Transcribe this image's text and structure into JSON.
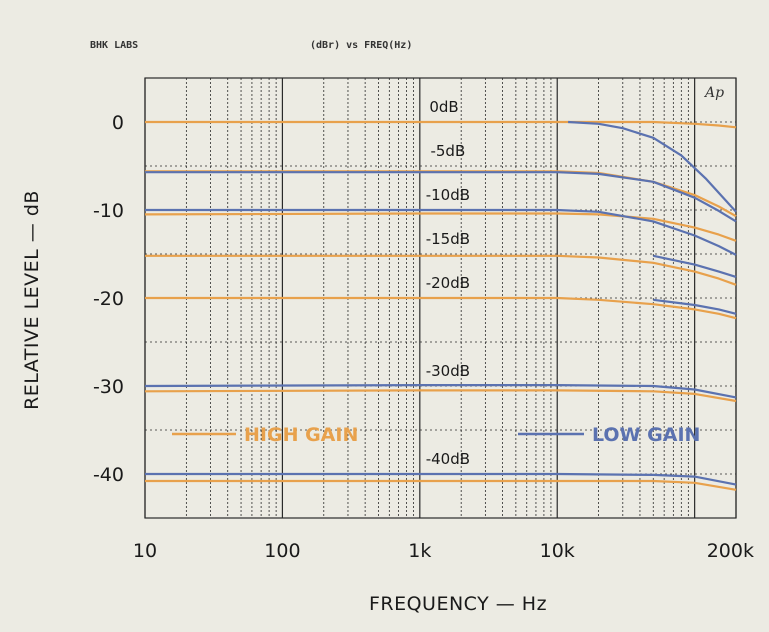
{
  "header": {
    "left": "BHK LABS",
    "center": "(dBr) vs FREQ(Hz)",
    "badge": "Ap"
  },
  "colors": {
    "high_gain": "#e8a14c",
    "low_gain": "#5b72b0",
    "grid": "#2a2a2a",
    "background": "#ecebe3"
  },
  "chart_data": {
    "type": "line",
    "title": "(dBr) vs FREQ(Hz)",
    "xlabel": "FREQUENCY — Hz",
    "ylabel": "RELATIVE LEVEL — dB",
    "xscale": "log",
    "xlim": [
      10,
      200000
    ],
    "ylim": [
      -45,
      5
    ],
    "grid": true,
    "legend_placement": "lower-middle",
    "x_ticks": [
      {
        "value": 10,
        "label": "10"
      },
      {
        "value": 100,
        "label": "100"
      },
      {
        "value": 1000,
        "label": "1k"
      },
      {
        "value": 10000,
        "label": "10k"
      },
      {
        "value": 200000,
        "label": "200k"
      }
    ],
    "y_ticks": [
      {
        "value": 0,
        "label": "0"
      },
      {
        "value": -10,
        "label": "-10"
      },
      {
        "value": -20,
        "label": "-20"
      },
      {
        "value": -30,
        "label": "-30"
      },
      {
        "value": -40,
        "label": "-40"
      }
    ],
    "annotations": [
      {
        "text": "0dB",
        "x": 1500,
        "y": 0
      },
      {
        "text": "-5dB",
        "x": 1600,
        "y": -5
      },
      {
        "text": "-10dB",
        "x": 1600,
        "y": -10
      },
      {
        "text": "-15dB",
        "x": 1600,
        "y": -15
      },
      {
        "text": "-20dB",
        "x": 1600,
        "y": -20
      },
      {
        "text": "-30dB",
        "x": 1600,
        "y": -30
      },
      {
        "text": "-40dB",
        "x": 1600,
        "y": -40
      }
    ],
    "legend": [
      {
        "label": "HIGH GAIN",
        "color": "#e8a14c"
      },
      {
        "label": "LOW GAIN",
        "color": "#5b72b0"
      }
    ],
    "series": [
      {
        "name": "HIGH GAIN",
        "color": "#e8a14c",
        "x": [
          10,
          1000,
          10000,
          20000,
          50000,
          100000,
          150000,
          200000
        ],
        "y": [
          0,
          0,
          0,
          0,
          0,
          -0.2,
          -0.4,
          -0.6
        ]
      },
      {
        "name": "HIGH GAIN",
        "color": "#e8a14c",
        "x": [
          10,
          1000,
          10000,
          20000,
          50000,
          100000,
          150000,
          200000
        ],
        "y": [
          -5.6,
          -5.6,
          -5.6,
          -5.8,
          -6.8,
          -8.3,
          -9.6,
          -10.7
        ]
      },
      {
        "name": "HIGH GAIN",
        "color": "#e8a14c",
        "x": [
          10,
          1000,
          10000,
          20000,
          50000,
          100000,
          150000,
          200000
        ],
        "y": [
          -10.5,
          -10.4,
          -10.4,
          -10.5,
          -11,
          -12,
          -12.8,
          -13.5
        ]
      },
      {
        "name": "HIGH GAIN",
        "color": "#e8a14c",
        "x": [
          10,
          1000,
          10000,
          20000,
          50000,
          100000,
          150000,
          200000
        ],
        "y": [
          -15.2,
          -15.2,
          -15.2,
          -15.4,
          -16,
          -17,
          -17.8,
          -18.5
        ]
      },
      {
        "name": "HIGH GAIN",
        "color": "#e8a14c",
        "x": [
          10,
          1000,
          10000,
          20000,
          50000,
          100000,
          150000,
          200000
        ],
        "y": [
          -20,
          -20,
          -20,
          -20.2,
          -20.7,
          -21.3,
          -21.8,
          -22.3
        ]
      },
      {
        "name": "HIGH GAIN",
        "color": "#e8a14c",
        "x": [
          10,
          1000,
          10000,
          50000,
          100000,
          200000
        ],
        "y": [
          -30.6,
          -30.5,
          -30.5,
          -30.6,
          -30.9,
          -31.7
        ]
      },
      {
        "name": "HIGH GAIN",
        "color": "#e8a14c",
        "x": [
          10,
          1000,
          10000,
          50000,
          100000,
          200000
        ],
        "y": [
          -40.8,
          -40.8,
          -40.8,
          -40.8,
          -41,
          -41.8
        ]
      },
      {
        "name": "LOW GAIN",
        "color": "#5b72b0",
        "x": [
          12000,
          20000,
          30000,
          50000,
          80000,
          120000,
          200000
        ],
        "y": [
          0,
          -0.2,
          -0.7,
          -1.8,
          -3.8,
          -6.4,
          -10.2
        ]
      },
      {
        "name": "LOW GAIN",
        "color": "#5b72b0",
        "x": [
          10,
          1000,
          10000,
          20000,
          50000,
          100000,
          150000,
          200000
        ],
        "y": [
          -5.7,
          -5.7,
          -5.7,
          -5.9,
          -6.8,
          -8.6,
          -10.1,
          -11.3
        ]
      },
      {
        "name": "LOW GAIN",
        "color": "#5b72b0",
        "x": [
          10,
          1000,
          10000,
          20000,
          50000,
          100000,
          150000,
          200000
        ],
        "y": [
          -10,
          -10,
          -10,
          -10.2,
          -11.3,
          -12.9,
          -14.1,
          -15.1
        ]
      },
      {
        "name": "LOW GAIN",
        "color": "#5b72b0",
        "x": [
          50000,
          100000,
          150000,
          200000
        ],
        "y": [
          -15.2,
          -16.2,
          -17,
          -17.6
        ]
      },
      {
        "name": "LOW GAIN",
        "color": "#5b72b0",
        "x": [
          50000,
          100000,
          150000,
          200000
        ],
        "y": [
          -20.2,
          -20.8,
          -21.3,
          -21.8
        ]
      },
      {
        "name": "LOW GAIN",
        "color": "#5b72b0",
        "x": [
          10,
          1000,
          10000,
          50000,
          100000,
          200000
        ],
        "y": [
          -30,
          -29.9,
          -29.9,
          -30,
          -30.4,
          -31.3
        ]
      },
      {
        "name": "LOW GAIN",
        "color": "#5b72b0",
        "x": [
          10,
          1000,
          10000,
          50000,
          100000,
          200000
        ],
        "y": [
          -40,
          -40,
          -40,
          -40.1,
          -40.3,
          -41.2
        ]
      }
    ]
  }
}
